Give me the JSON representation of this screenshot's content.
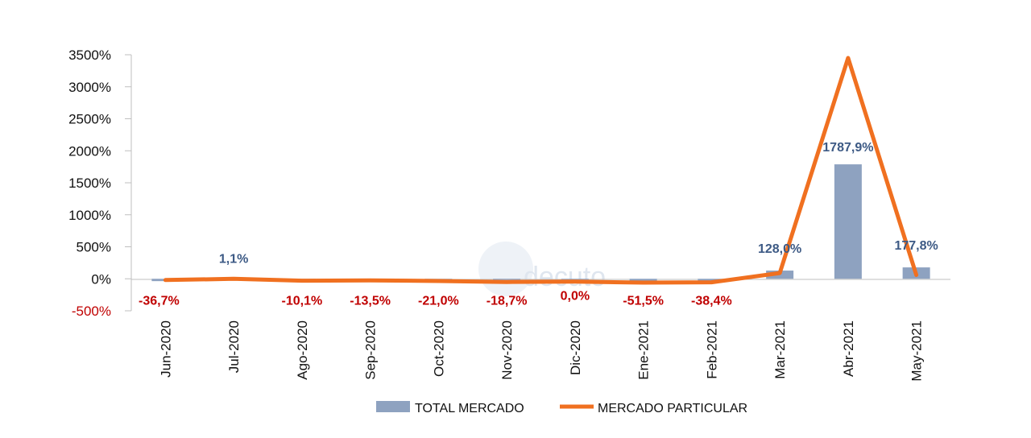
{
  "chart_data": {
    "type": "bar",
    "title": "",
    "xlabel": "",
    "ylabel": "",
    "categories": [
      "Jun-2020",
      "Jul-2020",
      "Ago-2020",
      "Sep-2020",
      "Oct-2020",
      "Nov-2020",
      "Dic-2020",
      "Ene-2021",
      "Feb-2021",
      "Mar-2021",
      "Abr-2021",
      "May-2021"
    ],
    "ylim": [
      -500,
      3500
    ],
    "yticks": [
      -500,
      0,
      500,
      1000,
      1500,
      2000,
      2500,
      3000,
      3500
    ],
    "ytick_labels": [
      "-500%",
      "0%",
      "500%",
      "1000%",
      "1500%",
      "2000%",
      "2500%",
      "3000%",
      "3500%"
    ],
    "series": [
      {
        "name": "TOTAL MERCADO",
        "type": "bar",
        "color": "#8ea2c0",
        "values": [
          -36.7,
          1.1,
          -10.1,
          -13.5,
          -21.0,
          -18.7,
          0.0,
          -51.5,
          -38.4,
          128.0,
          1787.9,
          177.8
        ],
        "labels": [
          "-36,7%",
          "1,1%",
          "-10,1%",
          "-13,5%",
          "-21,0%",
          "-18,7%",
          "0,0%",
          "-51,5%",
          "-38,4%",
          "128,0%",
          "1787,9%",
          "177,8%"
        ]
      },
      {
        "name": "MERCADO PARTICULAR",
        "type": "line",
        "color": "#f07020",
        "values": [
          -20,
          0,
          -30,
          -25,
          -35,
          -50,
          -45,
          -60,
          -55,
          90,
          3450,
          60
        ]
      }
    ],
    "label_colors": {
      "positive": "#3d5a85",
      "negative": "#c00000"
    },
    "watermark": "decuto",
    "legend_position": "bottom"
  }
}
